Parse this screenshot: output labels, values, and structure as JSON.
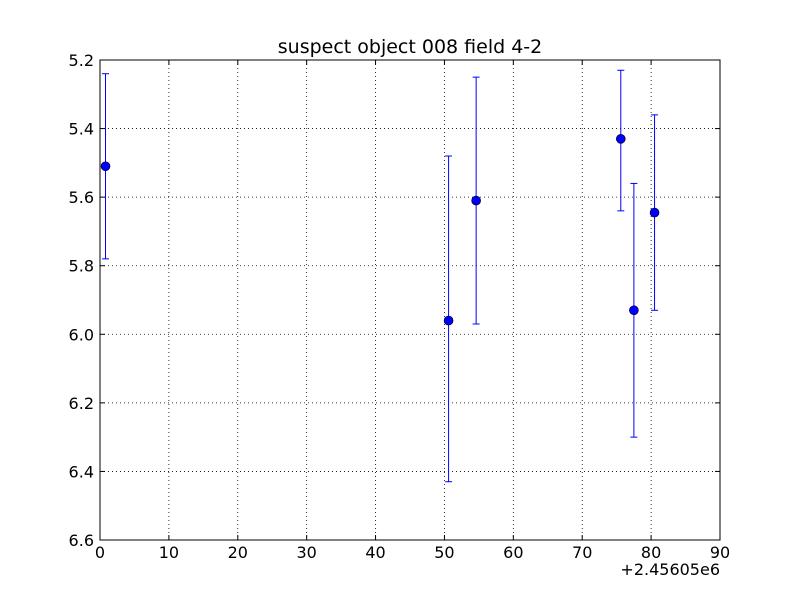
{
  "chart_data": {
    "type": "scatter",
    "title": "suspect object 008 field 4-2",
    "xlabel": "",
    "ylabel": "",
    "x_offset_label": "+2.45605e6",
    "xlim": [
      0,
      90
    ],
    "ylim": [
      6.6,
      5.2
    ],
    "y_inverted": true,
    "grid": true,
    "x_ticks": [
      0,
      10,
      20,
      30,
      40,
      50,
      60,
      70,
      80,
      90
    ],
    "x_tick_labels": [
      "0",
      "10",
      "20",
      "30",
      "40",
      "50",
      "60",
      "70",
      "80",
      "90"
    ],
    "y_ticks": [
      5.2,
      5.4,
      5.6,
      5.8,
      6.0,
      6.2,
      6.4,
      6.6
    ],
    "y_tick_labels": [
      "5.2",
      "5.4",
      "5.6",
      "5.8",
      "6.0",
      "6.2",
      "6.4",
      "6.6"
    ],
    "series": [
      {
        "marker_color": "#0000ff",
        "errorbar_color": "#0000ff",
        "points": [
          {
            "x": 2456050.8,
            "y": 5.51,
            "yerr_low": 5.24,
            "yerr_high": 5.78
          },
          {
            "x": 2456100.6,
            "y": 5.96,
            "yerr_low": 5.48,
            "yerr_high": 6.43
          },
          {
            "x": 2456104.6,
            "y": 5.61,
            "yerr_low": 5.25,
            "yerr_high": 5.97
          },
          {
            "x": 2456125.6,
            "y": 5.43,
            "yerr_low": 5.23,
            "yerr_high": 5.64
          },
          {
            "x": 2456127.5,
            "y": 5.93,
            "yerr_low": 5.56,
            "yerr_high": 6.3
          },
          {
            "x": 2456130.5,
            "y": 5.645,
            "yerr_low": 5.36,
            "yerr_high": 5.93
          }
        ]
      }
    ]
  }
}
